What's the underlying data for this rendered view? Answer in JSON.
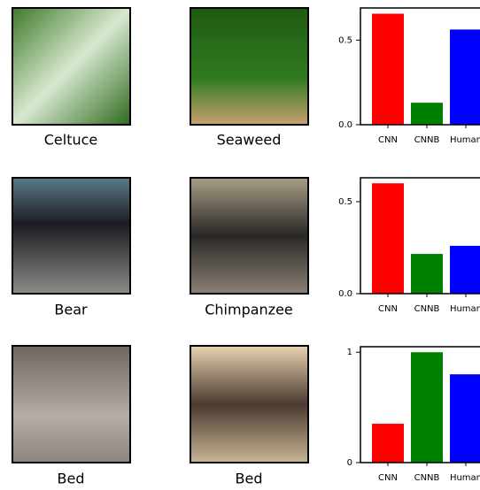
{
  "panels": [
    {
      "left": "Celtuce",
      "right": "Seaweed"
    },
    {
      "left": "Bear",
      "right": "Chimpanzee"
    },
    {
      "left": "Bed",
      "right": "Bed"
    }
  ],
  "chart_data": [
    {
      "type": "bar",
      "categories": [
        "CNN",
        "CNNB",
        "Human"
      ],
      "values": [
        0.656,
        0.13,
        0.5625
      ],
      "colors": [
        "#ff0000",
        "#008000",
        "#0000ff"
      ],
      "ylim": [
        0,
        0.69
      ],
      "yticks": [
        {
          "value": 0,
          "label": "0.0"
        },
        0.5
      ]
    },
    {
      "type": "bar",
      "categories": [
        "CNN",
        "CNNB",
        "Human"
      ],
      "values": [
        0.6,
        0.216,
        0.26
      ],
      "colors": [
        "#ff0000",
        "#008000",
        "#0000ff"
      ],
      "ylim": [
        0,
        0.63
      ],
      "yticks": [
        {
          "value": 0,
          "label": "0.0"
        },
        0.5
      ]
    },
    {
      "type": "bar",
      "categories": [
        "CNN",
        "CNNB",
        "Human"
      ],
      "values": [
        0.352,
        1.0,
        0.8
      ],
      "colors": [
        "#ff0000",
        "#008000",
        "#0000ff"
      ],
      "ylim": [
        0,
        1.05
      ],
      "yticks": [
        0,
        1
      ]
    }
  ]
}
